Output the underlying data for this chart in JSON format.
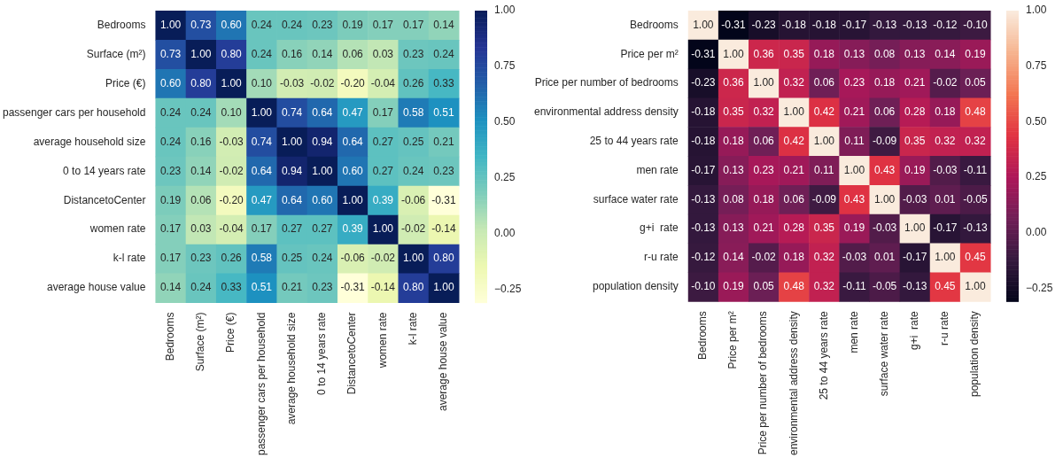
{
  "chart_data": [
    {
      "type": "heatmap",
      "categories": [
        "Bedrooms",
        "Surface (m²)",
        "Price (€)",
        "passenger cars per household",
        "average household size",
        "0 to 14 years rate",
        "DistancetoCenter",
        "women rate",
        "k-l rate",
        "average house value"
      ],
      "y_categories": [
        "Bedrooms",
        "Surface (m²)",
        "Price (€)",
        "passenger cars per household",
        "average household size",
        "0 to 14 years rate",
        "DistancetoCenter",
        "women rate",
        "k-l rate",
        "average house value"
      ],
      "cells": [
        [
          1.0,
          0.73,
          0.6,
          0.24,
          0.24,
          0.23,
          0.19,
          0.17,
          0.17,
          0.14
        ],
        [
          0.73,
          1.0,
          0.8,
          0.24,
          0.16,
          0.14,
          0.06,
          0.03,
          0.23,
          0.24
        ],
        [
          0.6,
          0.8,
          1.0,
          0.1,
          -0.03,
          -0.02,
          -0.2,
          -0.04,
          0.26,
          0.33
        ],
        [
          0.24,
          0.24,
          0.1,
          1.0,
          0.74,
          0.64,
          0.47,
          0.17,
          0.58,
          0.51
        ],
        [
          0.24,
          0.16,
          -0.03,
          0.74,
          1.0,
          0.94,
          0.64,
          0.27,
          0.25,
          0.21
        ],
        [
          0.23,
          0.14,
          -0.02,
          0.64,
          0.94,
          1.0,
          0.6,
          0.27,
          0.24,
          0.23
        ],
        [
          0.19,
          0.06,
          -0.2,
          0.47,
          0.64,
          0.6,
          1.0,
          0.39,
          -0.06,
          -0.31
        ],
        [
          0.17,
          0.03,
          -0.04,
          0.17,
          0.27,
          0.27,
          0.39,
          1.0,
          -0.02,
          -0.14
        ],
        [
          0.17,
          0.23,
          0.26,
          0.58,
          0.25,
          0.24,
          -0.06,
          -0.02,
          1.0,
          0.8
        ],
        [
          0.14,
          0.24,
          0.33,
          0.51,
          0.21,
          0.23,
          -0.31,
          -0.14,
          0.8,
          1.0
        ]
      ],
      "cell_labels": [
        [
          "1.00",
          "0.73",
          "0.60",
          "0.24",
          "0.24",
          "0.23",
          "0.19",
          "0.17",
          "0.17",
          "0.14"
        ],
        [
          "0.73",
          "1.00",
          "0.80",
          "0.24",
          "0.16",
          "0.14",
          "0.06",
          "0.03",
          "0.23",
          "0.24"
        ],
        [
          "0.60",
          "0.80",
          "1.00",
          "0.10",
          "-0.03",
          "-0.02",
          "-0.20",
          "-0.04",
          "0.26",
          "0.33"
        ],
        [
          "0.24",
          "0.24",
          "0.10",
          "1.00",
          "0.74",
          "0.64",
          "0.47",
          "0.17",
          "0.58",
          "0.51"
        ],
        [
          "0.24",
          "0.16",
          "-0.03",
          "0.74",
          "1.00",
          "0.94",
          "0.64",
          "0.27",
          "0.25",
          "0.21"
        ],
        [
          "0.23",
          "0.14",
          "-0.02",
          "0.64",
          "0.94",
          "1.00",
          "0.60",
          "0.27",
          "0.24",
          "0.23"
        ],
        [
          "0.19",
          "0.06",
          "-0.20",
          "0.47",
          "0.64",
          "0.60",
          "1.00",
          "0.39",
          "-0.06",
          "-0.31"
        ],
        [
          "0.17",
          "0.03",
          "-0.04",
          "0.17",
          "0.27",
          "0.27",
          "0.39",
          "1.00",
          "-0.02",
          "-0.14"
        ],
        [
          "0.17",
          "0.23",
          "0.26",
          "0.58",
          "0.25",
          "0.24",
          "-0.06",
          "-0.02",
          "1.00",
          "0.80"
        ],
        [
          "0.14",
          "0.24",
          "0.33",
          "0.51",
          "0.21",
          "0.23",
          "-0.31",
          "-0.14",
          "0.80",
          "1.00"
        ]
      ],
      "data_labels": true,
      "clim": [
        -0.31,
        1.0
      ],
      "cticks": [
        {
          "value": -0.25,
          "label": "−0.25"
        },
        {
          "value": 0,
          "label": "0.00"
        },
        {
          "value": 0.25,
          "label": "0.25"
        },
        {
          "value": 0.5,
          "label": "0.50"
        },
        {
          "value": 0.75,
          "label": "0.75"
        },
        {
          "value": 1,
          "label": "1.00"
        }
      ]
    },
    {
      "type": "heatmap",
      "categories": [
        "Bedrooms",
        "Price per m²",
        "Price per number of bedrooms",
        "environmental address density",
        "25 to 44 years rate",
        "men rate",
        "surface water rate",
        "g+i  rate",
        "r-u rate",
        "population density"
      ],
      "y_categories": [
        "Bedrooms",
        "Price per m²",
        "Price per number of bedrooms",
        "environmental address density",
        "25 to 44 years rate",
        "men rate",
        "surface water rate",
        "g+i  rate",
        "r-u rate",
        "population density"
      ],
      "cells": [
        [
          1.0,
          -0.31,
          -0.23,
          -0.18,
          -0.18,
          -0.17,
          -0.13,
          -0.13,
          -0.12,
          -0.1
        ],
        [
          -0.31,
          1.0,
          0.36,
          0.35,
          0.18,
          0.13,
          0.08,
          0.13,
          0.14,
          0.19
        ],
        [
          -0.23,
          0.36,
          1.0,
          0.32,
          0.06,
          0.23,
          0.18,
          0.21,
          -0.02,
          0.05
        ],
        [
          -0.18,
          0.35,
          0.32,
          1.0,
          0.42,
          0.21,
          0.06,
          0.28,
          0.18,
          0.48
        ],
        [
          -0.18,
          0.18,
          0.06,
          0.42,
          1.0,
          0.11,
          -0.09,
          0.35,
          0.32,
          0.32
        ],
        [
          -0.17,
          0.13,
          0.23,
          0.21,
          0.11,
          1.0,
          0.43,
          0.19,
          -0.03,
          -0.11
        ],
        [
          -0.13,
          0.08,
          0.18,
          0.06,
          -0.09,
          0.43,
          1.0,
          -0.03,
          0.01,
          -0.05
        ],
        [
          -0.13,
          0.13,
          0.21,
          0.28,
          0.35,
          0.19,
          -0.03,
          1.0,
          -0.17,
          -0.13
        ],
        [
          -0.12,
          0.14,
          -0.02,
          0.18,
          0.32,
          -0.03,
          0.01,
          -0.17,
          1.0,
          0.45
        ],
        [
          -0.1,
          0.19,
          0.05,
          0.48,
          0.32,
          -0.11,
          -0.05,
          -0.13,
          0.45,
          1.0
        ]
      ],
      "cell_labels": [
        [
          "1.00",
          "-0.31",
          "-0.23",
          "-0.18",
          "-0.18",
          "-0.17",
          "-0.13",
          "-0.13",
          "-0.12",
          "-0.10"
        ],
        [
          "-0.31",
          "1.00",
          "0.36",
          "0.35",
          "0.18",
          "0.13",
          "0.08",
          "0.13",
          "0.14",
          "0.19"
        ],
        [
          "-0.23",
          "0.36",
          "1.00",
          "0.32",
          "0.06",
          "0.23",
          "0.18",
          "0.21",
          "-0.02",
          "0.05"
        ],
        [
          "-0.18",
          "0.35",
          "0.32",
          "1.00",
          "0.42",
          "0.21",
          "0.06",
          "0.28",
          "0.18",
          "0.48"
        ],
        [
          "-0.18",
          "0.18",
          "0.06",
          "0.42",
          "1.00",
          "0.11",
          "-0.09",
          "0.35",
          "0.32",
          "0.32"
        ],
        [
          "-0.17",
          "0.13",
          "0.23",
          "0.21",
          "0.11",
          "1.00",
          "0.43",
          "0.19",
          "-0.03",
          "-0.11"
        ],
        [
          "-0.13",
          "0.08",
          "0.18",
          "0.06",
          "-0.09",
          "0.43",
          "1.00",
          "-0.03",
          "0.01",
          "-0.05"
        ],
        [
          "-0.13",
          "0.13",
          "0.21",
          "0.28",
          "0.35",
          "0.19",
          "-0.03",
          "1.00",
          "-0.17",
          "-0.13"
        ],
        [
          "-0.12",
          "0.14",
          "-0.02",
          "0.18",
          "0.32",
          "-0.03",
          "0.01",
          "-0.17",
          "1.00",
          "0.45"
        ],
        [
          "-0.10",
          "0.19",
          "0.05",
          "0.48",
          "0.32",
          "-0.11",
          "-0.05",
          "-0.13",
          "0.45",
          "1.00"
        ]
      ],
      "data_labels": true,
      "clim": [
        -0.31,
        1.0
      ],
      "cticks": [
        {
          "value": -0.25,
          "label": "−0.25"
        },
        {
          "value": 0,
          "label": "0.00"
        },
        {
          "value": 0.25,
          "label": "0.25"
        },
        {
          "value": 0.5,
          "label": "0.50"
        },
        {
          "value": 0.75,
          "label": "0.75"
        },
        {
          "value": 1,
          "label": "1.00"
        }
      ]
    }
  ]
}
